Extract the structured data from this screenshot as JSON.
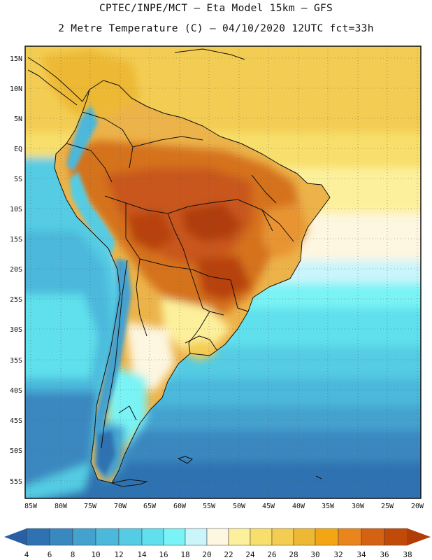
{
  "header": {
    "line1": "CPTEC/INPE/MCT –  Eta Model 15km – GFS",
    "line2": "2 Metre Temperature (C) – 04/10/2020 12UTC fct=33h"
  },
  "map": {
    "lat_labels": [
      "15N",
      "10N",
      "5N",
      "EQ",
      "5S",
      "10S",
      "15S",
      "20S",
      "25S",
      "30S",
      "35S",
      "40S",
      "45S",
      "50S",
      "55S"
    ],
    "lon_labels": [
      "85W",
      "80W",
      "75W",
      "70W",
      "65W",
      "60W",
      "55W",
      "50W",
      "45W",
      "40W",
      "35W",
      "30W",
      "25W",
      "20W"
    ]
  },
  "colorbar": {
    "labels": [
      "4",
      "6",
      "8",
      "10",
      "12",
      "14",
      "16",
      "18",
      "20",
      "22",
      "24",
      "26",
      "28",
      "30",
      "32",
      "34",
      "36",
      "38"
    ],
    "colors": [
      "#2a5fa4",
      "#2f72b1",
      "#3a88c0",
      "#45a2cf",
      "#4cb8dc",
      "#55cce3",
      "#5fe0ec",
      "#79f3f5",
      "#c9f5fb",
      "#fdf6e0",
      "#fdf09c",
      "#f8df6c",
      "#f3cd52",
      "#edb935",
      "#f3a614",
      "#e8861d",
      "#d56212",
      "#c24a09",
      "#b03d08"
    ]
  }
}
